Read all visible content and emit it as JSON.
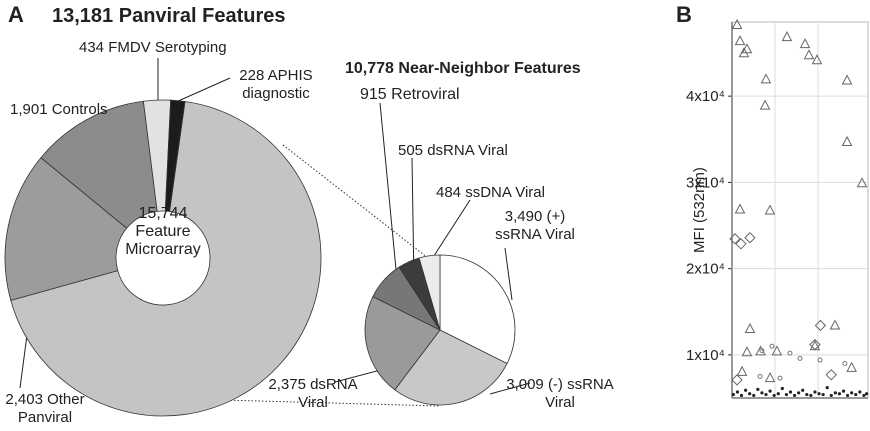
{
  "chart_data": [
    {
      "type": "donut",
      "panel": "A",
      "title": "13,181 Panviral Features",
      "center_label": "15,744 Feature Microarray",
      "categories": [
        null,
        "2,403 Other Panviral",
        "1,901 Controls",
        "434 FMDV Serotyping",
        "228 APHIS diagnostic"
      ],
      "values": [
        10778,
        2403,
        1901,
        434,
        228
      ],
      "colors": [
        "#c4c4c4",
        "#9c9c9c",
        "#8c8c8c",
        "#e2e2e2",
        "#1c1c1c"
      ]
    },
    {
      "type": "pie",
      "title": "10,778 Near-Neighbor Features",
      "categories": [
        "3,490 (+) ssRNA Viral",
        "3,009 (-) ssRNA Viral",
        "2,375 dsRNA Viral",
        "915 Retroviral",
        "505 dsRNA Viral",
        "484 ssDNA Viral"
      ],
      "values": [
        3490,
        3009,
        2375,
        915,
        505,
        484
      ],
      "colors": [
        "#ffffff",
        "#c8c8c8",
        "#9a9a9a",
        "#777777",
        "#3c3c3c",
        "#ececec"
      ]
    },
    {
      "type": "scatter",
      "panel": "B",
      "y_label": "MFI (532nm)",
      "xlim": [
        0,
        100
      ],
      "ylim": [
        5000,
        48600
      ],
      "yticks": [
        {
          "value": 10000,
          "label": "1x10⁴"
        },
        {
          "value": 20000,
          "label": "2x10⁴"
        },
        {
          "value": 30000,
          "label": "3x10⁴"
        },
        {
          "value": 40000,
          "label": "4x10⁴"
        }
      ],
      "grid": true,
      "series": [
        {
          "marker": "triangle",
          "color": "#666666",
          "x": [
            3.7,
            5.9,
            11,
            8.8,
            25,
            40.4,
            53.7,
            56.6,
            62.5,
            84.6,
            24.3,
            84.6,
            95.6,
            5.9,
            27.9,
            13.2,
            7.4,
            21,
            33,
            11,
            88,
            75.7,
            28,
            61
          ],
          "values": [
            48250,
            46380,
            45440,
            44980,
            41940,
            46850,
            46030,
            44740,
            44160,
            41820,
            38900,
            34690,
            29900,
            26860,
            26740,
            13000,
            8030,
            10400,
            10400,
            10300,
            8500,
            13400,
            7300,
            11000
          ]
        },
        {
          "marker": "diamond",
          "color": "#666666",
          "x": [
            2.2,
            6.6,
            13.2,
            61,
            65,
            73,
            3.7
          ],
          "values": [
            23470,
            22880,
            23580,
            11190,
            13410,
            7690,
            7100
          ]
        },
        {
          "marker": "circle",
          "color": "#777777",
          "x": [
            22,
            29.4,
            42.6,
            50,
            64.7,
            83,
            20.6,
            35.3
          ],
          "values": [
            10500,
            11000,
            10200,
            9600,
            9400,
            9000,
            7500,
            7300
          ]
        },
        {
          "marker": "dot",
          "color": "#222222",
          "x": [
            1,
            4,
            7,
            10,
            13,
            16,
            19,
            22,
            25,
            28,
            31,
            34,
            37,
            40,
            43,
            46,
            49,
            52,
            55,
            58,
            61,
            64,
            67,
            70,
            73,
            76,
            79,
            82,
            85,
            88,
            91,
            94,
            97,
            99
          ],
          "values": [
            5400,
            5700,
            5300,
            5900,
            5500,
            5300,
            6000,
            5600,
            5400,
            5800,
            5300,
            5500,
            6100,
            5400,
            5700,
            5300,
            5600,
            5900,
            5400,
            5300,
            5700,
            5500,
            5400,
            6200,
            5300,
            5600,
            5500,
            5800,
            5300,
            5600,
            5400,
            5700,
            5300,
            5500
          ]
        }
      ]
    }
  ]
}
